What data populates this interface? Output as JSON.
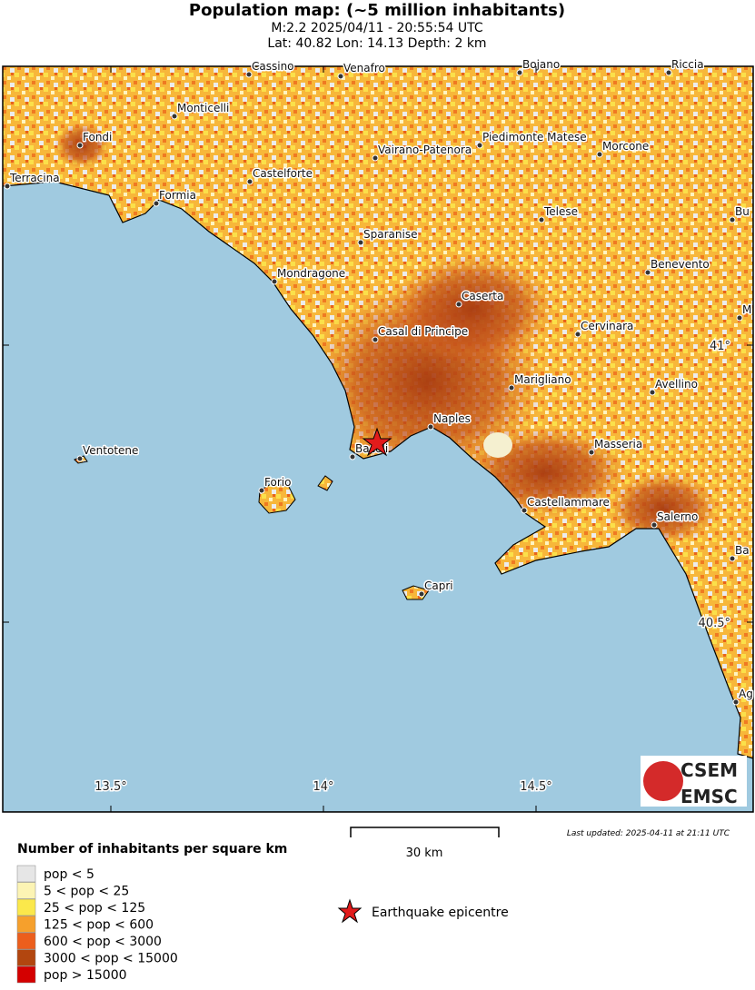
{
  "header": {
    "title": "Population map: (~5 million inhabitants)",
    "line1": "M:2.2 2025/04/11 - 20:55:54 UTC",
    "line2": "Lat: 40.82 Lon: 14.13 Depth: 2 km"
  },
  "map": {
    "cities": [
      "Cassino",
      "Venafro",
      "Bojano",
      "Riccia",
      "Monticelli",
      "Fondi",
      "Vairano-Patenora",
      "Piedimonte Matese",
      "Morcone",
      "Terracina",
      "Castelforte",
      "Formia",
      "Sparanise",
      "Telese",
      "Bu",
      "Mondragone",
      "Benevento",
      "Caserta",
      "Cervinara",
      "M",
      "Casal di Principe",
      "Marigliano",
      "Avellino",
      "Naples",
      "Bacoli",
      "Masseria",
      "Ventotene",
      "Forio",
      "Castellammare",
      "Salerno",
      "Ba",
      "Capri",
      "Ag"
    ],
    "lon_ticks": [
      {
        "value": 13.5,
        "label": "13.5°"
      },
      {
        "value": 14,
        "label": "14°"
      },
      {
        "value": 14.5,
        "label": "14.5°"
      }
    ],
    "lat_ticks": [
      {
        "value": 41,
        "label": "41°"
      },
      {
        "value": 40.5,
        "label": "40.5°"
      }
    ],
    "scale_label": "30 km",
    "last_updated": "Last updated: 2025-04-11 at 21:11 UTC",
    "logo": [
      "CSEM",
      "EMSC"
    ]
  },
  "legend": {
    "title": "Number of inhabitants per square km",
    "items": [
      {
        "label": "pop < 5",
        "color": "#e6e6e6"
      },
      {
        "label": "5 < pop < 25",
        "color": "#fcf4b4"
      },
      {
        "label": "25 < pop < 125",
        "color": "#fbe84b"
      },
      {
        "label": "125 < pop < 600",
        "color": "#f6a02c"
      },
      {
        "label": "600 < pop < 3000",
        "color": "#ec5e1c"
      },
      {
        "label": "3000 < pop < 15000",
        "color": "#b2460f"
      },
      {
        "label": "pop > 15000",
        "color": "#d40000"
      }
    ],
    "epicentre": "Earthquake epicentre"
  }
}
